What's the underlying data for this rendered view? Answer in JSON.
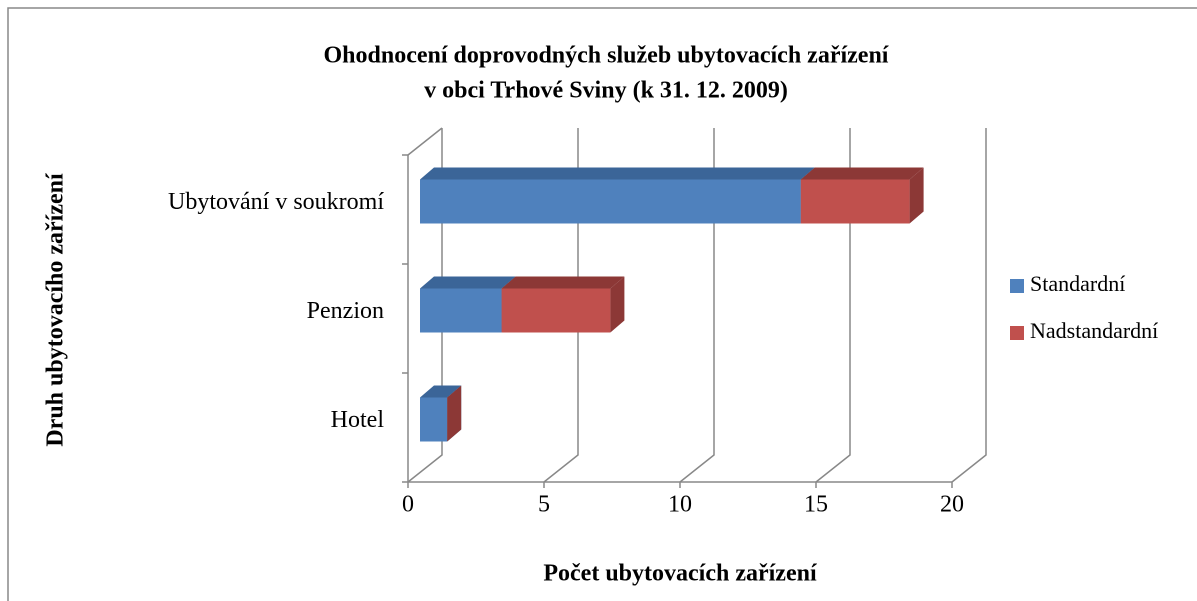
{
  "chart_data": {
    "type": "bar",
    "orientation": "horizontal",
    "stacked": true,
    "three_d": true,
    "title": [
      "Ohodnocení doprovodných služeb ubytovacích zařízení",
      "v obci Trhové Sviny (k 31. 12. 2009)"
    ],
    "x_label": "Počet ubytovacích zařízení",
    "y_label": "Druh ubytovacího zařízení",
    "categories": [
      "Hotel",
      "Penzion",
      "Ubytování v soukromí"
    ],
    "series": [
      {
        "name": "Standardní",
        "color": "#4f81bd",
        "values": [
          1,
          3,
          14
        ]
      },
      {
        "name": "Nadstandardní",
        "color": "#c0504d",
        "values": [
          0,
          4,
          4
        ]
      }
    ],
    "xlim": [
      0,
      20
    ],
    "xticks": [
      0,
      5,
      10,
      15,
      20
    ],
    "grid": true,
    "legend": "right"
  }
}
